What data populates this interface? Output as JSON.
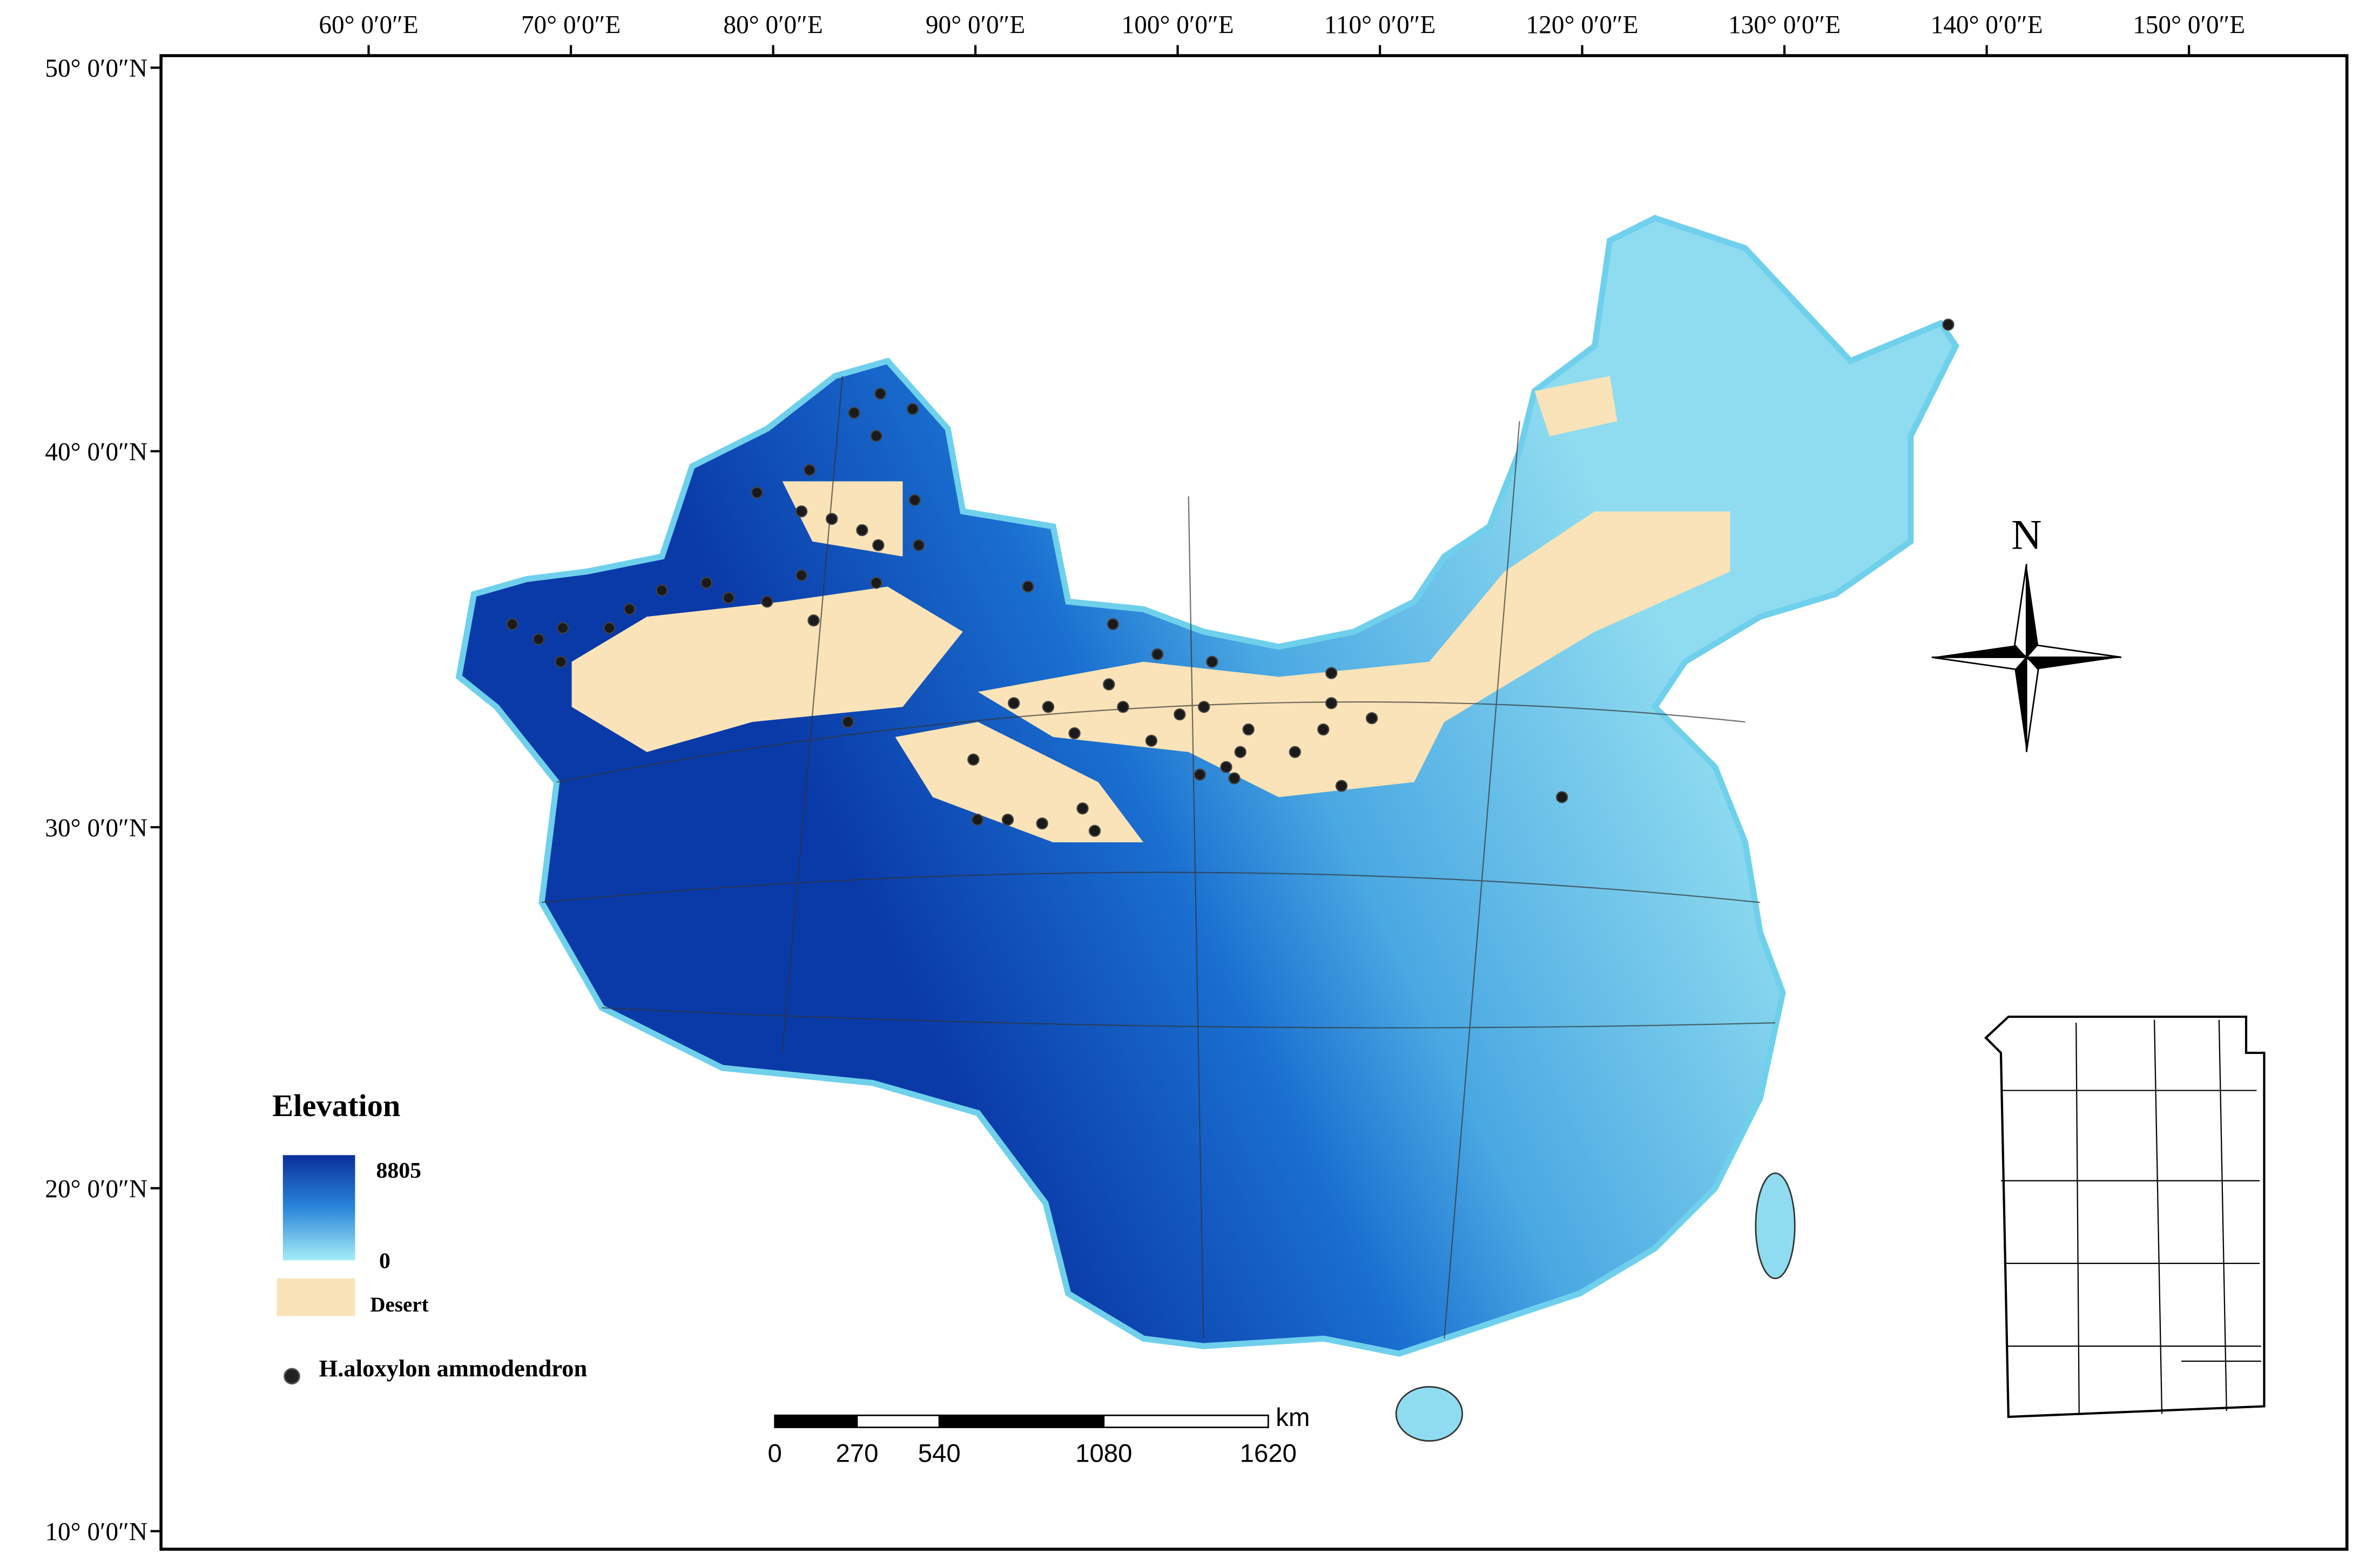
{
  "map": {
    "lon_labels": [
      {
        "value": 60,
        "label": "60°  0′0″E"
      },
      {
        "value": 70,
        "label": "70°  0′0″E"
      },
      {
        "value": 80,
        "label": "80°  0′0″E"
      },
      {
        "value": 90,
        "label": "90°  0′0″E"
      },
      {
        "value": 100,
        "label": "100°  0′0″E"
      },
      {
        "value": 110,
        "label": "110°  0′0″E"
      },
      {
        "value": 120,
        "label": "120°  0′0″E"
      },
      {
        "value": 130,
        "label": "130°  0′0″E"
      },
      {
        "value": 140,
        "label": "140°  0′0″E"
      },
      {
        "value": 150,
        "label": "150°  0′0″E"
      }
    ],
    "lat_labels": [
      {
        "value": 50,
        "label": "50°  0′0″N"
      },
      {
        "value": 40,
        "label": "40°  0′0″N"
      },
      {
        "value": 30,
        "label": "30°  0′0″N"
      },
      {
        "value": 20,
        "label": "20°  0′0″N"
      },
      {
        "value": 10,
        "label": "10°  0′0″N"
      }
    ]
  },
  "legend": {
    "title": "Elevation",
    "max": 8805,
    "min": 0,
    "desert": "Desert",
    "species": "H.aloxylon ammodendron"
  },
  "scale_bar": {
    "unit": "km",
    "ticks": [
      0,
      270,
      540,
      1080,
      1620
    ]
  },
  "north": "N",
  "occurrences": [
    {
      "lon": 85.3,
      "lat": 41.5
    },
    {
      "lon": 84.0,
      "lat": 41.0
    },
    {
      "lon": 86.9,
      "lat": 41.1
    },
    {
      "lon": 85.1,
      "lat": 40.4
    },
    {
      "lon": 81.8,
      "lat": 39.5
    },
    {
      "lon": 87.0,
      "lat": 38.7
    },
    {
      "lon": 79.2,
      "lat": 38.9
    },
    {
      "lon": 81.4,
      "lat": 38.4
    },
    {
      "lon": 82.9,
      "lat": 38.2
    },
    {
      "lon": 84.4,
      "lat": 37.9
    },
    {
      "lon": 85.2,
      "lat": 37.5
    },
    {
      "lon": 87.2,
      "lat": 37.5
    },
    {
      "lon": 92.6,
      "lat": 36.4
    },
    {
      "lon": 85.1,
      "lat": 36.5
    },
    {
      "lon": 81.4,
      "lat": 36.7
    },
    {
      "lon": 76.7,
      "lat": 36.5
    },
    {
      "lon": 77.8,
      "lat": 36.1
    },
    {
      "lon": 79.7,
      "lat": 36.0
    },
    {
      "lon": 82.0,
      "lat": 35.5
    },
    {
      "lon": 74.5,
      "lat": 36.3
    },
    {
      "lon": 72.9,
      "lat": 35.8
    },
    {
      "lon": 71.9,
      "lat": 35.3
    },
    {
      "lon": 69.6,
      "lat": 35.3
    },
    {
      "lon": 67.1,
      "lat": 35.4
    },
    {
      "lon": 68.4,
      "lat": 35.0
    },
    {
      "lon": 69.5,
      "lat": 34.4
    },
    {
      "lon": 83.7,
      "lat": 32.8
    },
    {
      "lon": 96.8,
      "lat": 35.4
    },
    {
      "lon": 96.6,
      "lat": 33.8
    },
    {
      "lon": 99.0,
      "lat": 34.6
    },
    {
      "lon": 101.7,
      "lat": 34.4
    },
    {
      "lon": 107.6,
      "lat": 34.1
    },
    {
      "lon": 91.9,
      "lat": 33.3
    },
    {
      "lon": 93.6,
      "lat": 33.2
    },
    {
      "lon": 94.9,
      "lat": 32.5
    },
    {
      "lon": 97.3,
      "lat": 33.2
    },
    {
      "lon": 100.1,
      "lat": 33.0
    },
    {
      "lon": 101.3,
      "lat": 33.2
    },
    {
      "lon": 103.5,
      "lat": 32.6
    },
    {
      "lon": 103.1,
      "lat": 32.0
    },
    {
      "lon": 102.4,
      "lat": 31.6
    },
    {
      "lon": 102.8,
      "lat": 31.3
    },
    {
      "lon": 105.8,
      "lat": 32.0
    },
    {
      "lon": 107.2,
      "lat": 32.6
    },
    {
      "lon": 109.6,
      "lat": 32.9
    },
    {
      "lon": 108.1,
      "lat": 31.1
    },
    {
      "lon": 101.1,
      "lat": 31.4
    },
    {
      "lon": 98.7,
      "lat": 32.3
    },
    {
      "lon": 89.9,
      "lat": 31.8
    },
    {
      "lon": 90.1,
      "lat": 30.2
    },
    {
      "lon": 91.6,
      "lat": 30.2
    },
    {
      "lon": 93.3,
      "lat": 30.1
    },
    {
      "lon": 95.3,
      "lat": 30.5
    },
    {
      "lon": 95.9,
      "lat": 29.9
    },
    {
      "lon": 119.0,
      "lat": 30.8
    },
    {
      "lon": 107.6,
      "lat": 33.3
    },
    {
      "lon": 138.1,
      "lat": 43.3
    }
  ]
}
